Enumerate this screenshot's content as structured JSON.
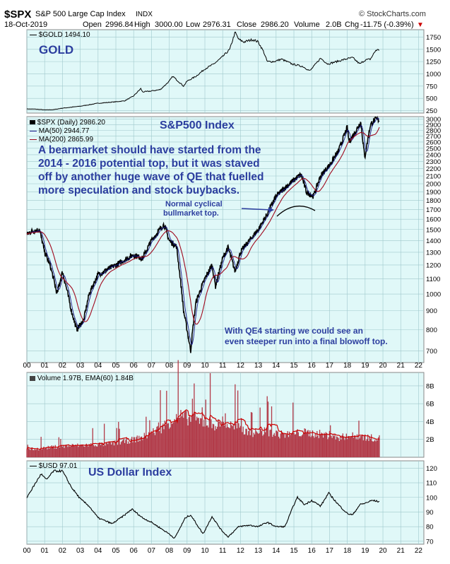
{
  "header": {
    "symbol": "$SPX",
    "name": "S&P 500 Large Cap Index",
    "exchange": "INDX",
    "copyright": "© StockCharts.com",
    "date": "18-Oct-2019",
    "open_label": "Open",
    "open": "2996.84",
    "high_label": "High",
    "high": "3000.00",
    "low_label": "Low",
    "low": "2976.31",
    "close_label": "Close",
    "close": "2986.20",
    "volume_label": "Volume",
    "volume": "2.0B",
    "chg_label": "Chg",
    "chg": "-11.75 (-0.39%)",
    "chg_icon": "down-triangle-icon"
  },
  "colors": {
    "panel_bg": "#e0f8f8",
    "grid": "#9fc8cc",
    "price": "#000000",
    "ma_red": "#a00a1e",
    "ma_blue": "#1a1a8a",
    "volume_fill": "#b23a48",
    "annotation": "#2c3e9f",
    "chg_red": "#cc0000"
  },
  "panels": {
    "gold": {
      "legend": "$GOLD 1494.10",
      "title": "GOLD"
    },
    "spx": {
      "legend_main": "$SPX (Daily) 2986.20",
      "legend_ma50": "MA(50) 2944.77",
      "legend_ma200": "MA(200) 2865.99",
      "title": "S&P500 Index",
      "note_1": "A bearmarket should have started from the",
      "note_2": "2014 - 2016 potential top, but it was staved",
      "note_3": "off by another huge wave of QE that fuelled",
      "note_4": "more speculation and stock buybacks.",
      "note_top_1": "Normal cyclical",
      "note_top_2": "bullmarket top.",
      "note_qe4_1": "With QE4 starting we could see an",
      "note_qe4_2": "even steeper run into a final blowoff top."
    },
    "volume": {
      "legend": "Volume 1.97B, EMA(60) 1.84B"
    },
    "usd": {
      "legend": "$USD 97.01",
      "title": "US Dollar Index"
    }
  },
  "chart_data": [
    {
      "type": "line",
      "title": "GOLD",
      "legend": "$GOLD 1494.10",
      "x": [
        2000.0,
        2000.5,
        2001.0,
        2001.5,
        2002.0,
        2002.5,
        2003.0,
        2004.0,
        2005.0,
        2005.5,
        2006.0,
        2006.4,
        2006.5,
        2007.0,
        2007.5,
        2008.0,
        2008.2,
        2008.8,
        2009.0,
        2009.5,
        2010.0,
        2010.5,
        2011.0,
        2011.4,
        2011.7,
        2011.9,
        2012.2,
        2012.7,
        2013.0,
        2013.3,
        2013.5,
        2013.9,
        2014.3,
        2014.9,
        2015.5,
        2015.9,
        2016.5,
        2016.9,
        2017.5,
        2017.9,
        2018.3,
        2018.7,
        2019.0,
        2019.3,
        2019.6,
        2019.8
      ],
      "y": [
        285,
        280,
        265,
        270,
        300,
        320,
        340,
        400,
        430,
        450,
        550,
        700,
        630,
        650,
        680,
        850,
        950,
        750,
        850,
        950,
        1100,
        1200,
        1350,
        1500,
        1850,
        1700,
        1650,
        1700,
        1650,
        1450,
        1250,
        1250,
        1300,
        1200,
        1150,
        1060,
        1320,
        1200,
        1260,
        1300,
        1330,
        1200,
        1280,
        1300,
        1480,
        1494
      ],
      "ylim": [
        200,
        1900
      ],
      "ticks_y": [
        250,
        500,
        750,
        1000,
        1250,
        1500,
        1750
      ]
    },
    {
      "type": "line",
      "title": "S&P500 Index",
      "legend": "$SPX (Daily) 2986.20",
      "x": [
        2000.0,
        2000.2,
        2000.7,
        2001.0,
        2001.3,
        2001.7,
        2002.0,
        2002.5,
        2002.8,
        2003.2,
        2003.5,
        2004.0,
        2005.0,
        2006.0,
        2006.5,
        2007.0,
        2007.7,
        2008.0,
        2008.4,
        2008.8,
        2009.2,
        2009.5,
        2010.0,
        2010.4,
        2010.6,
        2011.0,
        2011.3,
        2011.7,
        2012.0,
        2012.5,
        2013.0,
        2013.5,
        2014.0,
        2014.5,
        2015.0,
        2015.4,
        2015.7,
        2016.1,
        2016.5,
        2017.0,
        2017.5,
        2018.0,
        2018.1,
        2018.5,
        2018.75,
        2018.98,
        2019.3,
        2019.6,
        2019.8
      ],
      "y": [
        1450,
        1480,
        1500,
        1300,
        1200,
        1000,
        1150,
        900,
        800,
        850,
        1000,
        1130,
        1200,
        1280,
        1250,
        1400,
        1550,
        1400,
        1350,
        900,
        700,
        950,
        1100,
        1200,
        1050,
        1250,
        1340,
        1150,
        1300,
        1400,
        1500,
        1650,
        1850,
        1950,
        2050,
        2120,
        1900,
        1850,
        2100,
        2250,
        2450,
        2850,
        2600,
        2800,
        2950,
        2350,
        2900,
        3000,
        2986
      ],
      "ylim": [
        650,
        3050
      ],
      "ticks_y": [
        700,
        800,
        900,
        1000,
        1100,
        1200,
        1300,
        1400,
        1500,
        1600,
        1700,
        1800,
        1900,
        2000,
        2100,
        2200,
        2300,
        2400,
        2500,
        2600,
        2700,
        2800,
        2900,
        3000
      ],
      "ma50_last": 2944.77,
      "ma200_last": 2865.99
    },
    {
      "type": "bar",
      "title": "Volume",
      "legend": "Volume 1.97B, EMA(60) 1.84B",
      "x": [
        2000,
        2001,
        2002,
        2003,
        2004,
        2005,
        2006,
        2007,
        2008,
        2009,
        2010,
        2011,
        2012,
        2013,
        2014,
        2015,
        2016,
        2017,
        2018,
        2019
      ],
      "values_b": [
        1.0,
        1.25,
        1.4,
        1.5,
        1.6,
        1.9,
        2.4,
        3.5,
        5.0,
        4.5,
        4.0,
        3.8,
        3.0,
        3.0,
        2.7,
        3.0,
        2.8,
        2.4,
        2.6,
        2.3
      ],
      "ylim": [
        0,
        9.5
      ],
      "ticks_y": [
        "2B",
        "4B",
        "6B",
        "8B"
      ]
    },
    {
      "type": "line",
      "title": "US Dollar Index",
      "legend": "$USD 97.01",
      "x": [
        2000.0,
        2000.3,
        2000.8,
        2001.1,
        2001.5,
        2002.0,
        2002.5,
        2003.0,
        2003.5,
        2004.0,
        2004.8,
        2005.5,
        2005.9,
        2006.5,
        2007.0,
        2007.5,
        2008.0,
        2008.3,
        2008.9,
        2009.2,
        2009.9,
        2010.4,
        2010.9,
        2011.3,
        2011.9,
        2012.5,
        2013.0,
        2013.5,
        2014.0,
        2014.5,
        2015.0,
        2015.2,
        2015.6,
        2016.0,
        2016.5,
        2016.95,
        2017.5,
        2018.0,
        2018.3,
        2018.7,
        2019.0,
        2019.4,
        2019.8
      ],
      "y": [
        100,
        106,
        116,
        112,
        118,
        118,
        107,
        99,
        94,
        86,
        82,
        88,
        92,
        86,
        83,
        79,
        75,
        72,
        86,
        88,
        75,
        87,
        78,
        73,
        80,
        81,
        80,
        83,
        80,
        80,
        95,
        100,
        95,
        98,
        94,
        103,
        95,
        89,
        88,
        95,
        96,
        98,
        97
      ],
      "ylim": [
        68,
        125
      ],
      "ticks_y": [
        70,
        80,
        90,
        100,
        110,
        120
      ]
    }
  ],
  "x_axis": {
    "labels": [
      "00",
      "01",
      "02",
      "03",
      "04",
      "05",
      "06",
      "07",
      "08",
      "09",
      "10",
      "11",
      "12",
      "13",
      "14",
      "15",
      "16",
      "17",
      "18",
      "19",
      "20",
      "21",
      "22"
    ]
  }
}
